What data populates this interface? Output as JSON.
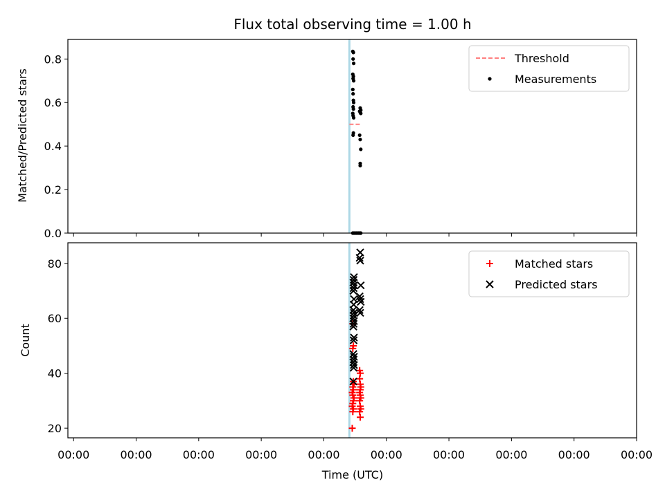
{
  "chart_data": [
    {
      "type": "scatter",
      "title": "Flux total observing time = 1.00 h",
      "xlabel": "",
      "ylabel": "Matched/Predicted stars",
      "ylim": [
        0,
        0.89
      ],
      "y_ticks": [
        0.0,
        0.2,
        0.4,
        0.6,
        0.8
      ],
      "y_tick_labels": [
        "0.0",
        "0.2",
        "0.4",
        "0.6",
        "0.8"
      ],
      "x_tick_labels": [],
      "vline_x": 0.495,
      "legend_position": "upper right",
      "series": [
        {
          "name": "Threshold",
          "style": "dashed-line",
          "color": "#ff7f7f",
          "x": [
            0.495,
            0.515
          ],
          "y": [
            0.5,
            0.5
          ]
        },
        {
          "name": "Measurements",
          "style": "dot",
          "color": "#000000",
          "x": [
            0.501,
            0.502,
            0.5015,
            0.5025,
            0.501,
            0.502,
            0.5015,
            0.5025,
            0.501,
            0.5015,
            0.502,
            0.5025,
            0.5015,
            0.502,
            0.501,
            0.5015,
            0.5025,
            0.502,
            0.5015,
            0.514,
            0.515,
            0.513,
            0.514,
            0.515,
            0.513,
            0.514,
            0.515,
            0.514,
            0.514,
            0.514,
            0.501,
            0.503,
            0.505,
            0.507,
            0.509,
            0.511,
            0.513,
            0.515
          ],
          "y": [
            0.835,
            0.83,
            0.8,
            0.78,
            0.73,
            0.72,
            0.71,
            0.7,
            0.66,
            0.64,
            0.61,
            0.6,
            0.58,
            0.57,
            0.55,
            0.54,
            0.53,
            0.46,
            0.45,
            0.575,
            0.565,
            0.56,
            0.555,
            0.55,
            0.45,
            0.43,
            0.385,
            0.32,
            0.31,
            0.0,
            0.0,
            0.0,
            0.0,
            0.0,
            0.0,
            0.0,
            0.0,
            0.0
          ]
        }
      ]
    },
    {
      "type": "scatter",
      "title": "",
      "xlabel": "Time (UTC)",
      "ylabel": "Count",
      "ylim": [
        16.5,
        87.5
      ],
      "y_ticks": [
        20,
        40,
        60,
        80
      ],
      "y_tick_labels": [
        "20",
        "40",
        "60",
        "80"
      ],
      "x_tick_labels": [
        "00:00",
        "00:00",
        "00:00",
        "00:00",
        "00:00",
        "00:00",
        "00:00",
        "00:00",
        "00:00",
        "00:00"
      ],
      "vline_x": 0.495,
      "legend_position": "upper right",
      "series": [
        {
          "name": "Matched stars",
          "style": "plus",
          "color": "#ff0000",
          "x": [
            0.5,
            0.501,
            0.502,
            0.5,
            0.501,
            0.502,
            0.503,
            0.501,
            0.5,
            0.502,
            0.501,
            0.503,
            0.502,
            0.501,
            0.502,
            0.501,
            0.514,
            0.513,
            0.515,
            0.514,
            0.513,
            0.515,
            0.514,
            0.513,
            0.514,
            0.515,
            0.514,
            0.513,
            0.514,
            0.513
          ],
          "y": [
            20,
            26,
            27,
            28,
            29,
            30,
            31,
            32,
            33,
            34,
            35,
            36,
            37,
            49,
            50,
            58,
            24,
            26,
            27,
            28,
            30,
            31,
            32,
            33,
            34,
            35,
            36,
            38,
            40,
            41
          ]
        },
        {
          "name": "Predicted stars",
          "style": "x",
          "color": "#000000",
          "x": [
            0.502,
            0.5025,
            0.503,
            0.502,
            0.5025,
            0.503,
            0.502,
            0.5025,
            0.503,
            0.502,
            0.5025,
            0.503,
            0.502,
            0.5025,
            0.503,
            0.502,
            0.5025,
            0.503,
            0.502,
            0.5025,
            0.503,
            0.502,
            0.5025,
            0.503,
            0.514,
            0.513,
            0.515,
            0.514,
            0.513,
            0.515,
            0.514,
            0.513,
            0.514
          ],
          "y": [
            37,
            42,
            43,
            44,
            45,
            46,
            47,
            52,
            53,
            57,
            58,
            59,
            60,
            61,
            62,
            63,
            65,
            67,
            70,
            71,
            72,
            73,
            74,
            75,
            62,
            63,
            66,
            67,
            68,
            72,
            81,
            82,
            84
          ]
        }
      ]
    }
  ]
}
